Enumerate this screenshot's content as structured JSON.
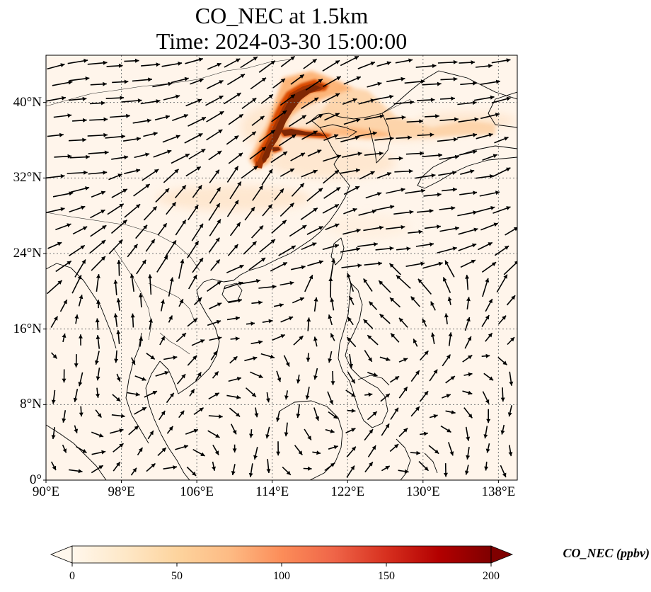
{
  "title": {
    "line1": "CO_NEC at 1.5km",
    "line2": "Time: 2024-03-30 15:00:00"
  },
  "map": {
    "lon_range": [
      90,
      140
    ],
    "lat_range": [
      0,
      45
    ],
    "lat_ticks": [
      {
        "value": 0,
        "label": "0°"
      },
      {
        "value": 8,
        "label": "8°N"
      },
      {
        "value": 16,
        "label": "16°N"
      },
      {
        "value": 24,
        "label": "24°N"
      },
      {
        "value": 32,
        "label": "32°N"
      },
      {
        "value": 40,
        "label": "40°N"
      }
    ],
    "lon_ticks": [
      {
        "value": 90,
        "label": "90°E"
      },
      {
        "value": 98,
        "label": "98°E"
      },
      {
        "value": 106,
        "label": "106°E"
      },
      {
        "value": 114,
        "label": "114°E"
      },
      {
        "value": 122,
        "label": "122°E"
      },
      {
        "value": 130,
        "label": "130°E"
      },
      {
        "value": 138,
        "label": "138°E"
      }
    ],
    "gridlines": true,
    "background_color": "#fff5eb",
    "plume_colors": [
      "#fee6ce",
      "#fdd0a2",
      "#fdae6b",
      "#f16913",
      "#d94801",
      "#a63603",
      "#7f2704"
    ]
  },
  "colorbar": {
    "label": "CO_NEC (ppbv)",
    "min": 0,
    "max": 200,
    "ticks": [
      {
        "value": 0,
        "label": "0"
      },
      {
        "value": 50,
        "label": "50"
      },
      {
        "value": 100,
        "label": "100"
      },
      {
        "value": 150,
        "label": "150"
      },
      {
        "value": 200,
        "label": "200"
      }
    ],
    "colormap": "OrRd",
    "colors": [
      "#fff7ec",
      "#fee8c8",
      "#fdd49e",
      "#fdbb84",
      "#fc8d59",
      "#ef6548",
      "#d7301f",
      "#b30000",
      "#7f0000"
    ],
    "extend": "both"
  }
}
